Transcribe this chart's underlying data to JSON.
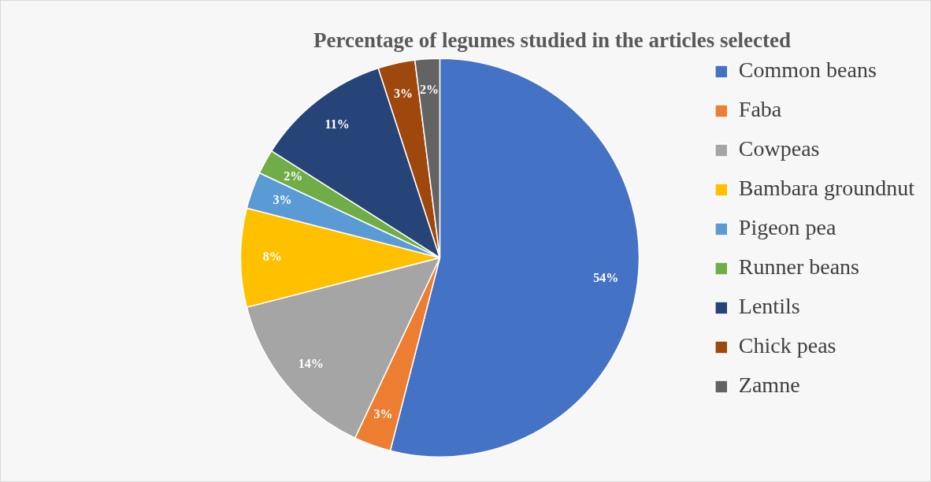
{
  "chart_data": {
    "type": "pie",
    "title": "Percentage of legumes studied in the articles selected",
    "categories": [
      "Common beans",
      "Faba",
      "Cowpeas",
      "Bambara groundnut",
      "Pigeon pea",
      "Runner beans",
      "Lentils",
      "Chick peas",
      "Zamne"
    ],
    "values": [
      54,
      3,
      14,
      8,
      3,
      2,
      11,
      3,
      2
    ],
    "colors": [
      "#4472c4",
      "#ed7d31",
      "#a5a5a5",
      "#ffc000",
      "#5b9bd5",
      "#70ad47",
      "#264478",
      "#9e480e",
      "#636363"
    ],
    "value_labels": [
      "54%",
      "3%",
      "14%",
      "8%",
      "3%",
      "2%",
      "11%",
      "3%",
      "2%"
    ],
    "legend": "right"
  }
}
